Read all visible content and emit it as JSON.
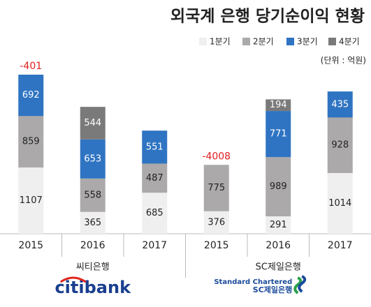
{
  "chart_data": {
    "type": "stacked_bar",
    "title": "외국계 은행 당기순이익 현황",
    "unit": "(단위 : 억원)",
    "categories": [
      "2015",
      "2016",
      "2017",
      "2015",
      "2016",
      "2017"
    ],
    "groups": [
      {
        "label": "씨티은행",
        "logo_text": [
          "citibank"
        ]
      },
      {
        "label": "SC제일은행",
        "logo_text": [
          "Standard Chartered",
          "SC제일은행"
        ]
      }
    ],
    "series": [
      {
        "name": "1분기",
        "color": "#efefef",
        "values": [
          1107,
          365,
          685,
          376,
          291,
          1014
        ]
      },
      {
        "name": "2분기",
        "color": "#aba9a9",
        "values": [
          859,
          558,
          487,
          775,
          989,
          928
        ]
      },
      {
        "name": "3분기",
        "color": "#2f74c2",
        "values": [
          692,
          653,
          551,
          null,
          771,
          435
        ]
      },
      {
        "name": "4분기",
        "color": "#7a7a7a",
        "values": [
          -401,
          544,
          null,
          -4008,
          194,
          null
        ]
      }
    ],
    "negative_color": "#e02020"
  }
}
